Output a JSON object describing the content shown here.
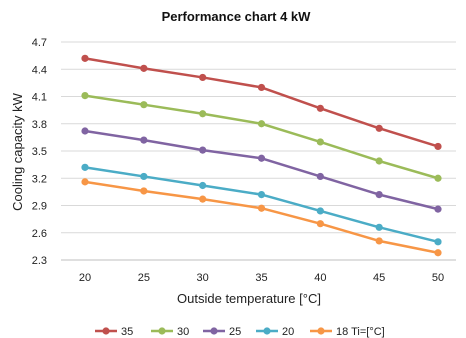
{
  "chart_data": {
    "type": "line",
    "title": "Performance chart 4 kW",
    "xlabel": "Outside temperature [°C]",
    "ylabel": "Cooling capacity kW",
    "x": [
      20,
      25,
      30,
      35,
      40,
      45,
      50
    ],
    "x_tick_labels": [
      "20",
      "25",
      "30",
      "35",
      "40",
      "45",
      "50"
    ],
    "ylim": [
      2.3,
      4.7
    ],
    "y_ticks": [
      2.3,
      2.6,
      2.9,
      3.2,
      3.5,
      3.8,
      4.1,
      4.4,
      4.7
    ],
    "y_tick_labels": [
      "2.3",
      "2.6",
      "2.9",
      "3.2",
      "3.5",
      "3.8",
      "4.1",
      "4.4",
      "4.7"
    ],
    "grid": {
      "horizontal": true,
      "vertical": false
    },
    "legend": {
      "placement": "bottom"
    },
    "series": [
      {
        "name": "35",
        "color": "#c0504d",
        "values": [
          4.52,
          4.41,
          4.31,
          4.2,
          3.97,
          3.75,
          3.55
        ]
      },
      {
        "name": "30",
        "color": "#9bbb59",
        "values": [
          4.11,
          4.01,
          3.91,
          3.8,
          3.6,
          3.39,
          3.2
        ]
      },
      {
        "name": "25",
        "color": "#8064a2",
        "values": [
          3.72,
          3.62,
          3.51,
          3.42,
          3.22,
          3.02,
          2.86
        ]
      },
      {
        "name": "20",
        "color": "#4bacc6",
        "values": [
          3.32,
          3.22,
          3.12,
          3.02,
          2.84,
          2.66,
          2.5
        ]
      },
      {
        "name": "18 Ti=[°C]",
        "color": "#f79646",
        "values": [
          3.16,
          3.06,
          2.97,
          2.87,
          2.7,
          2.51,
          2.38
        ]
      }
    ]
  }
}
